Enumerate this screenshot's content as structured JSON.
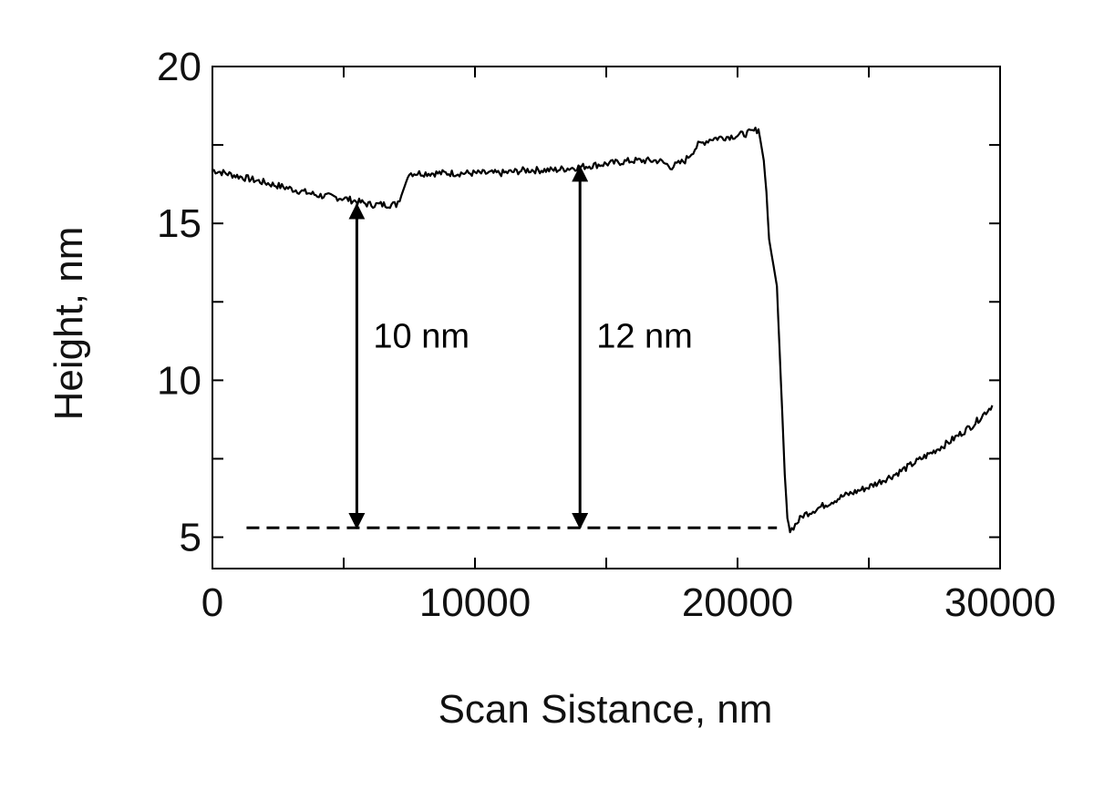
{
  "chart_data": {
    "type": "line",
    "title": "",
    "xlabel": "Scan Sistance, nm",
    "ylabel": "Height, nm",
    "xlim": [
      0,
      30000
    ],
    "ylim": [
      4,
      20
    ],
    "x_ticks": [
      0,
      10000,
      20000,
      30000
    ],
    "x_tick_labels": [
      "0",
      "10000",
      "20000",
      "30000"
    ],
    "y_ticks": [
      5,
      10,
      15,
      20
    ],
    "y_tick_labels": [
      "5",
      "10",
      "15",
      "20"
    ],
    "grid": false,
    "legend": "none",
    "series": [
      {
        "color": "#000000",
        "x": [
          0,
          1000,
          2000,
          3000,
          4000,
          5000,
          6000,
          7000,
          7200,
          7500,
          8000,
          9000,
          10000,
          11000,
          12000,
          13000,
          14000,
          15000,
          16000,
          17000,
          17500,
          18000,
          18500,
          19000,
          20000,
          20500,
          20800,
          21000,
          21100,
          21200,
          21300,
          21500,
          21600,
          21700,
          21800,
          21900,
          22000,
          22200,
          22500,
          23000,
          24000,
          25000,
          26000,
          27000,
          28000,
          29000,
          29700
        ],
        "y": [
          16.7,
          16.5,
          16.3,
          16.1,
          15.9,
          15.8,
          15.6,
          15.6,
          15.9,
          16.6,
          16.6,
          16.6,
          16.6,
          16.6,
          16.7,
          16.7,
          16.8,
          16.9,
          17.0,
          17.0,
          16.8,
          17.0,
          17.5,
          17.7,
          17.8,
          17.9,
          18.0,
          17.0,
          16.0,
          14.5,
          14.0,
          13.0,
          11.0,
          9.0,
          7.0,
          5.6,
          5.2,
          5.4,
          5.7,
          5.9,
          6.3,
          6.6,
          7.0,
          7.5,
          8.0,
          8.6,
          9.2
        ]
      }
    ],
    "annotations": [
      {
        "type": "double-arrow",
        "x": 5500,
        "y_from": 5.3,
        "y_to": 15.6,
        "label": "10 nm"
      },
      {
        "type": "double-arrow",
        "x": 14000,
        "y_from": 5.3,
        "y_to": 16.8,
        "label": "12 nm"
      },
      {
        "type": "dashed-line",
        "x_from": 1300,
        "x_to": 21500,
        "y": 5.3
      }
    ]
  }
}
